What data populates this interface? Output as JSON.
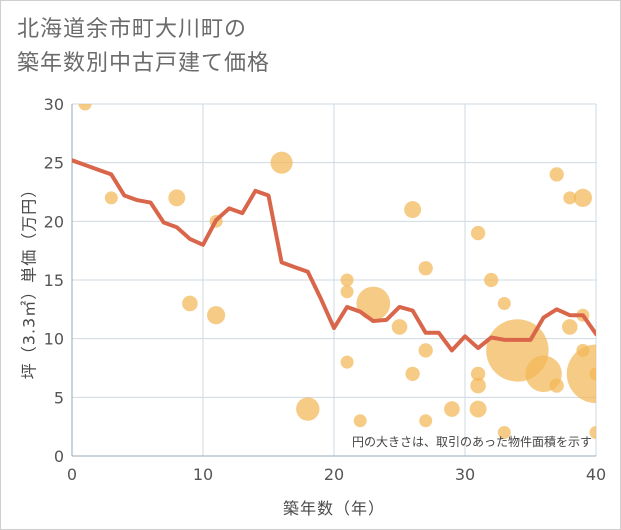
{
  "chart_data": {
    "type": "scatter",
    "title_line1": "北海道余市町大川町の",
    "title_line2": "築年数別中古戸建て価格",
    "xlabel": "築年数（年）",
    "ylabel": "坪（3.3㎡）単価（万円）",
    "note": "円の大きさは、取引のあった物件面積を示す",
    "xlim": [
      0,
      40
    ],
    "ylim": [
      0,
      30
    ],
    "x_ticks": [
      "0",
      "10",
      "20",
      "30",
      "40"
    ],
    "y_ticks": [
      "0",
      "5",
      "10",
      "15",
      "20",
      "25",
      "30"
    ],
    "colors": {
      "bubble": "#f3b756",
      "line": "#d9664b",
      "grid": "#cfd9e3",
      "bg": "#ffffff"
    },
    "bubbles": [
      {
        "x": 1,
        "y": 30,
        "s": 1
      },
      {
        "x": 3,
        "y": 22,
        "s": 1
      },
      {
        "x": 8,
        "y": 22,
        "s": 1.3
      },
      {
        "x": 9,
        "y": 13,
        "s": 1.2
      },
      {
        "x": 11,
        "y": 12,
        "s": 1.4
      },
      {
        "x": 11,
        "y": 20,
        "s": 1
      },
      {
        "x": 16,
        "y": 25,
        "s": 1.7
      },
      {
        "x": 18,
        "y": 4,
        "s": 1.8
      },
      {
        "x": 21,
        "y": 15,
        "s": 1
      },
      {
        "x": 21,
        "y": 14,
        "s": 1
      },
      {
        "x": 21,
        "y": 8,
        "s": 1
      },
      {
        "x": 22,
        "y": 3,
        "s": 1
      },
      {
        "x": 23,
        "y": 13,
        "s": 2.6
      },
      {
        "x": 25,
        "y": 11,
        "s": 1.2
      },
      {
        "x": 26,
        "y": 21,
        "s": 1.3
      },
      {
        "x": 26,
        "y": 7,
        "s": 1.1
      },
      {
        "x": 27,
        "y": 16,
        "s": 1.1
      },
      {
        "x": 27,
        "y": 9,
        "s": 1.1
      },
      {
        "x": 27,
        "y": 3,
        "s": 1
      },
      {
        "x": 29,
        "y": 4,
        "s": 1.2
      },
      {
        "x": 31,
        "y": 19,
        "s": 1.1
      },
      {
        "x": 31,
        "y": 7,
        "s": 1.1
      },
      {
        "x": 31,
        "y": 6,
        "s": 1.2
      },
      {
        "x": 31,
        "y": 4,
        "s": 1.3
      },
      {
        "x": 32,
        "y": 15,
        "s": 1.1
      },
      {
        "x": 33,
        "y": 13,
        "s": 1
      },
      {
        "x": 33,
        "y": 2,
        "s": 1
      },
      {
        "x": 34,
        "y": 9,
        "s": 4.8
      },
      {
        "x": 36,
        "y": 7,
        "s": 2.8
      },
      {
        "x": 37,
        "y": 24,
        "s": 1.1
      },
      {
        "x": 37,
        "y": 6,
        "s": 1.1
      },
      {
        "x": 38,
        "y": 22,
        "s": 1
      },
      {
        "x": 38,
        "y": 11,
        "s": 1.2
      },
      {
        "x": 39,
        "y": 22,
        "s": 1.4
      },
      {
        "x": 39,
        "y": 12,
        "s": 1
      },
      {
        "x": 39,
        "y": 9,
        "s": 1
      },
      {
        "x": 40,
        "y": 7,
        "s": 4.5
      },
      {
        "x": 40,
        "y": 7,
        "s": 1
      },
      {
        "x": 40,
        "y": 2,
        "s": 1
      }
    ],
    "trend": {
      "x": [
        0,
        1,
        2,
        3,
        4,
        5,
        6,
        7,
        8,
        9,
        10,
        11,
        12,
        13,
        14,
        15,
        16,
        17,
        18,
        19,
        20,
        21,
        22,
        23,
        24,
        25,
        26,
        27,
        28,
        29,
        30,
        31,
        32,
        33,
        34,
        35,
        36,
        37,
        38,
        39,
        40
      ],
      "y": [
        25.2,
        24.8,
        24.4,
        24.0,
        22.2,
        21.8,
        21.6,
        19.9,
        19.5,
        18.5,
        18.0,
        20.1,
        21.1,
        20.7,
        22.6,
        22.2,
        16.5,
        16.1,
        15.7,
        13.4,
        10.9,
        12.7,
        12.3,
        11.5,
        11.6,
        12.7,
        12.4,
        10.5,
        10.5,
        9.0,
        10.2,
        9.2,
        10.1,
        9.9,
        9.9,
        9.9,
        11.8,
        12.5,
        12.0,
        12.0,
        10.4
      ]
    }
  }
}
